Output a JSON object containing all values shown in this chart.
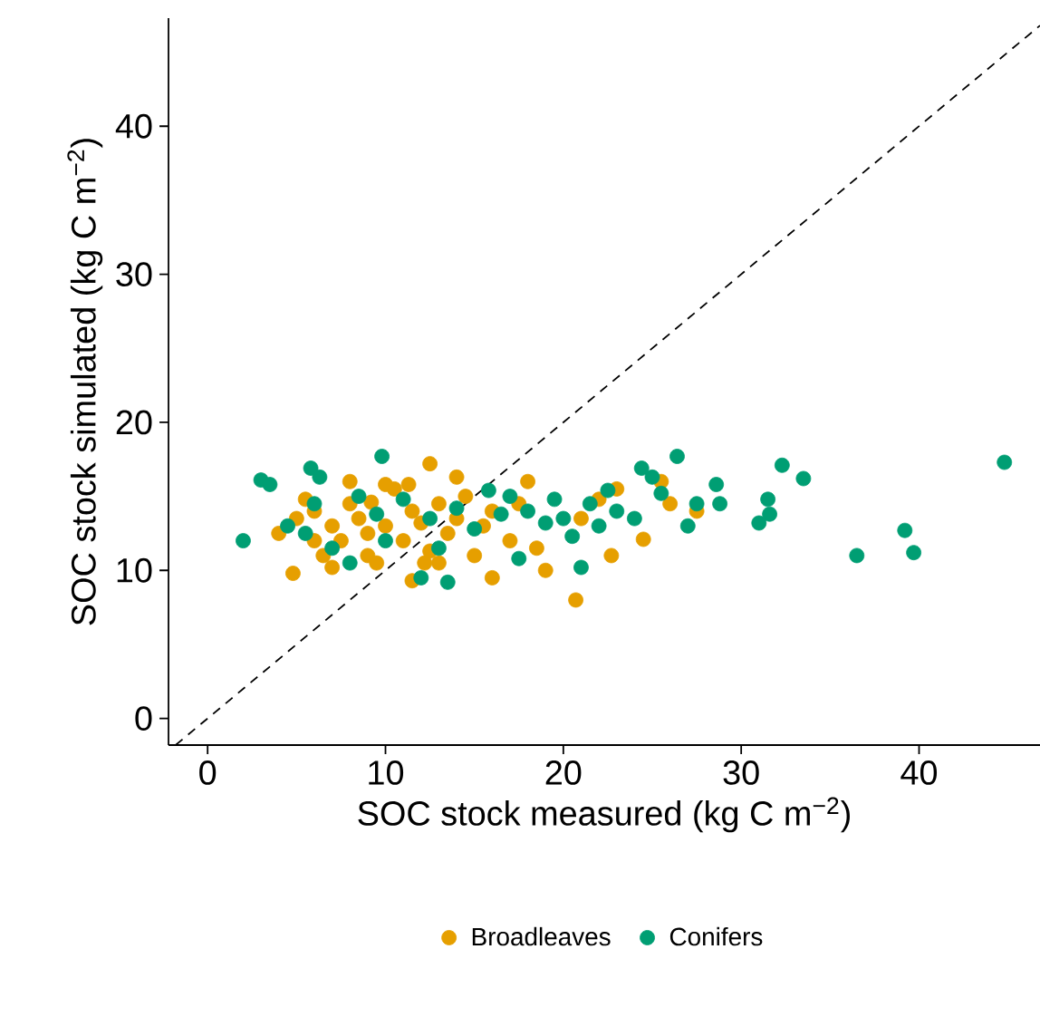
{
  "chart_data": {
    "type": "scatter",
    "xlabel": "SOC stock measured (kg C m$^{−2}$)",
    "ylabel": "SOC stock simulated (kg C m$^{−2}$)",
    "xlim": [
      -2.2,
      46.8
    ],
    "ylim": [
      -1.8,
      47.3
    ],
    "xticks": [
      0,
      10,
      20,
      30,
      40
    ],
    "yticks": [
      0,
      10,
      20,
      30,
      40
    ],
    "grid": false,
    "legend": "bottom",
    "series": [
      {
        "name": "Broadleaves",
        "color": "#e69f00",
        "marker": "circle",
        "x": [
          12.5,
          20.7,
          4.8,
          12.2,
          11.5,
          16.0,
          19.0,
          24.5,
          22.7,
          26.0,
          27.5,
          25.5,
          23.0,
          18.5,
          17.0,
          15.0,
          4.0,
          5.0,
          6.0,
          7.0,
          7.5,
          8.0,
          8.5,
          9.0,
          9.2,
          10.0,
          10.5,
          11.0,
          11.5,
          12.0,
          13.0,
          13.5,
          14.0,
          14.5,
          15.5,
          16.0,
          6.5,
          7.0,
          9.0,
          8.0,
          10.0,
          12.5,
          17.5,
          18.0,
          21.0,
          22.0,
          5.5,
          6.0,
          9.5,
          14.0,
          11.3,
          13.0
        ],
        "values": [
          17.2,
          8.0,
          9.8,
          10.5,
          9.3,
          9.5,
          10.0,
          12.1,
          11.0,
          14.5,
          14.0,
          16.0,
          15.5,
          11.5,
          12.0,
          11.0,
          12.5,
          13.5,
          14.0,
          13.0,
          12.0,
          14.5,
          13.5,
          12.5,
          14.6,
          13.0,
          15.5,
          12.0,
          14.0,
          13.2,
          14.5,
          12.5,
          13.5,
          15.0,
          13.0,
          14.0,
          11.0,
          10.2,
          11.0,
          16.0,
          15.8,
          11.3,
          14.5,
          16.0,
          13.5,
          14.8,
          14.8,
          12.0,
          10.5,
          16.3,
          15.8,
          10.5
        ]
      },
      {
        "name": "Conifers",
        "color": "#009e73",
        "marker": "circle",
        "x": [
          44.8,
          39.2,
          39.7,
          36.5,
          32.3,
          33.5,
          31.5,
          31.6,
          31.0,
          28.6,
          28.8,
          27.5,
          26.4,
          24.4,
          25.0,
          25.5,
          24.0,
          27.0,
          22.5,
          21.5,
          20.5,
          21.0,
          2.0,
          3.0,
          3.5,
          9.8,
          5.8,
          6.3,
          13.5,
          12.0,
          17.5,
          15.8,
          18.0,
          19.0,
          4.5,
          5.5,
          7.0,
          8.0,
          10.0,
          11.0,
          12.5,
          14.0,
          15.0,
          16.5,
          17.0,
          19.5,
          20.0,
          22.0,
          23.0,
          6.0,
          8.5,
          9.5,
          13.0
        ],
        "values": [
          17.3,
          12.7,
          11.2,
          11.0,
          17.1,
          16.2,
          14.8,
          13.8,
          13.2,
          15.8,
          14.5,
          14.5,
          17.7,
          16.9,
          16.3,
          15.2,
          13.5,
          13.0,
          15.4,
          14.5,
          12.3,
          10.2,
          12.0,
          16.1,
          15.8,
          17.7,
          16.9,
          16.3,
          9.2,
          9.5,
          10.8,
          15.4,
          14.0,
          13.2,
          13.0,
          12.5,
          11.5,
          10.5,
          12.0,
          14.8,
          13.5,
          14.2,
          12.8,
          13.8,
          15.0,
          14.8,
          13.5,
          13.0,
          14.0,
          14.5,
          15.0,
          13.8,
          11.5
        ]
      },
      {
        "type": "line",
        "color": "#000000",
        "line_style": "dashed",
        "marker": "none",
        "x": [
          -1.8,
          46.8
        ],
        "values": [
          -1.8,
          46.8
        ]
      }
    ]
  }
}
